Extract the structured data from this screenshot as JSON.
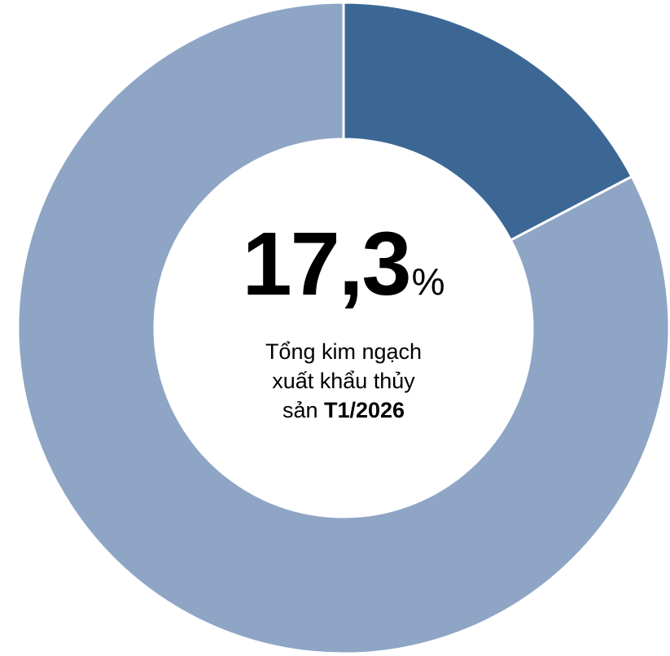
{
  "chart_data": {
    "type": "pie",
    "style": "donut",
    "start_angle_deg": 0,
    "direction": "clockwise-from-top",
    "slices": [
      {
        "value": 17.3,
        "color": "#3c6795"
      },
      {
        "value": 82.7,
        "color": "#8fa5c5"
      }
    ],
    "separator_color": "#ffffff",
    "center": {
      "value": "17,3",
      "unit": "%",
      "caption_line1": "Tổng kim ngạch",
      "caption_line2": "xuất khẩu thủy",
      "caption_line3_prefix": "sản ",
      "caption_line3_bold": "T1/2026"
    }
  }
}
